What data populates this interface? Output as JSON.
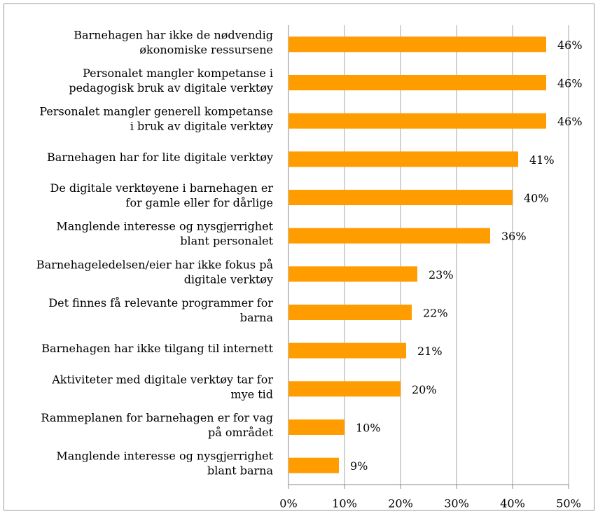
{
  "chart_data": {
    "type": "barh",
    "categories": [
      [
        "Barnehagen har ikke de nødvendig",
        "økonomiske ressursene"
      ],
      [
        "Personalet mangler kompetanse i",
        "pedagogisk bruk av digitale verktøy"
      ],
      [
        "Personalet mangler generell kompetanse",
        "i bruk av digitale verktøy"
      ],
      [
        "Barnehagen har for lite digitale verktøy"
      ],
      [
        "De digitale verktøyene i barnehagen er",
        "for gamle eller for dårlige"
      ],
      [
        "Manglende interesse og nysgjerrighet",
        "blant personalet"
      ],
      [
        "Barnehageledelsen/eier har ikke fokus på",
        "digitale verktøy"
      ],
      [
        "Det finnes få relevante programmer for",
        "barna"
      ],
      [
        "Barnehagen har ikke tilgang til internett"
      ],
      [
        "Aktiviteter med digitale verktøy tar for",
        "mye tid"
      ],
      [
        "Rammeplanen for barnehagen er for vag",
        "på området"
      ],
      [
        "Manglende interesse og nysgjerrighet",
        "blant barna"
      ]
    ],
    "values": [
      46,
      46,
      46,
      41,
      40,
      36,
      23,
      22,
      21,
      20,
      10,
      9
    ],
    "value_labels": [
      "46%",
      "46%",
      "46%",
      "41%",
      "40%",
      "36%",
      "23%",
      "22%",
      "21%",
      "20%",
      "10%",
      "9%"
    ],
    "color": "#ff9c00",
    "xlim": [
      0,
      50
    ],
    "xticks": [
      {
        "value": 0,
        "label": "0%"
      },
      {
        "value": 10,
        "label": "10%"
      },
      {
        "value": 20,
        "label": "20%"
      },
      {
        "value": 30,
        "label": "30%"
      },
      {
        "value": 40,
        "label": "40%"
      },
      {
        "value": 50,
        "label": "50%"
      }
    ],
    "grid": true
  }
}
